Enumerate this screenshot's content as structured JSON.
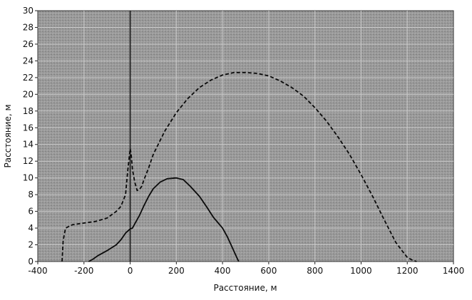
{
  "chart_data": {
    "type": "line",
    "title": "",
    "xlabel": "Расстояние, м",
    "ylabel": "Расстояние, м",
    "xlim": [
      -400,
      1400
    ],
    "ylim": [
      0,
      30
    ],
    "x_ticks": [
      -400,
      -200,
      0,
      200,
      400,
      600,
      800,
      1000,
      1200,
      1400
    ],
    "y_ticks": [
      0,
      2,
      4,
      6,
      8,
      10,
      12,
      14,
      16,
      18,
      20,
      22,
      24,
      26,
      28,
      30
    ],
    "grid": true,
    "vertical_marker_x": 0,
    "series": [
      {
        "style": "dashed",
        "x": [
          -295,
          -290,
          -280,
          -250,
          -200,
          -150,
          -100,
          -60,
          -40,
          -20,
          -10,
          0,
          5,
          10,
          20,
          30,
          40,
          50,
          60,
          80,
          100,
          150,
          200,
          250,
          300,
          350,
          400,
          450,
          500,
          550,
          600,
          650,
          700,
          750,
          800,
          850,
          900,
          950,
          1000,
          1050,
          1100,
          1150,
          1180,
          1200,
          1220,
          1230,
          1240
        ],
        "y": [
          0,
          2.5,
          4.0,
          4.4,
          4.6,
          4.8,
          5.2,
          6.0,
          6.6,
          8.0,
          11.0,
          13.5,
          12.6,
          11.0,
          9.5,
          8.5,
          8.6,
          9.0,
          9.8,
          11.2,
          12.8,
          15.6,
          17.8,
          19.5,
          20.8,
          21.7,
          22.3,
          22.6,
          22.6,
          22.5,
          22.2,
          21.6,
          20.8,
          19.8,
          18.4,
          16.8,
          14.9,
          12.8,
          10.4,
          7.8,
          5.0,
          2.3,
          1.2,
          0.5,
          0.2,
          0.1,
          0
        ]
      },
      {
        "style": "solid",
        "x": [
          -180,
          -160,
          -140,
          -100,
          -60,
          -40,
          -20,
          0,
          10,
          20,
          40,
          60,
          80,
          100,
          130,
          160,
          200,
          230,
          260,
          300,
          330,
          360,
          400,
          420,
          440,
          460,
          470
        ],
        "y": [
          0,
          0.3,
          0.7,
          1.3,
          2.0,
          2.6,
          3.4,
          3.9,
          4.0,
          4.5,
          5.5,
          6.7,
          7.8,
          8.7,
          9.5,
          9.9,
          10.0,
          9.8,
          9.0,
          7.8,
          6.6,
          5.3,
          4.0,
          3.0,
          1.8,
          0.6,
          0
        ]
      }
    ]
  }
}
